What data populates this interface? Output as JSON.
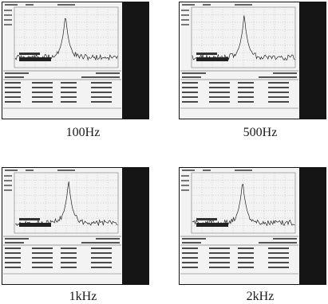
{
  "captions": [
    "100Hz",
    "500Hz",
    "1kHz",
    "2kHz"
  ],
  "colors": {
    "bezel": "#151515",
    "screen": "#f3f3f3",
    "trace": "#222222",
    "caption": "#1a1a1a"
  }
}
